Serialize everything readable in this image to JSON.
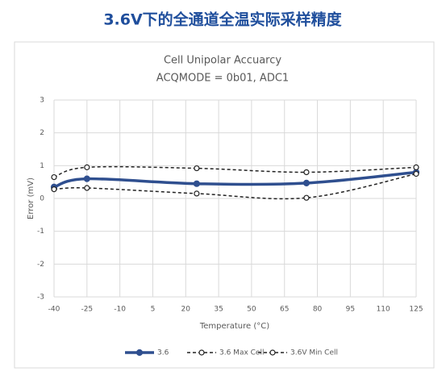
{
  "header": {
    "title": "3.6V下的全通道全温实际采样精度"
  },
  "chart_data": {
    "type": "line",
    "title": "Cell Unipolar Accuarcy",
    "subtitle": "ACQMODE = 0b01, ADC1",
    "x_label": "Temperature (°C)",
    "y_label": "Error (mV)",
    "x": [
      -40,
      -25,
      25,
      75,
      125
    ],
    "series": [
      {
        "name": "3.6",
        "color": "#2f4f8f",
        "values": [
          0.35,
          0.6,
          0.45,
          0.47,
          0.8
        ]
      },
      {
        "name": "3.6 Max Cell",
        "color": "#222222",
        "values": [
          0.65,
          0.95,
          0.92,
          0.8,
          0.95
        ]
      },
      {
        "name": "3.6V Min Cell",
        "color": "#222222",
        "values": [
          0.28,
          0.32,
          0.15,
          0.02,
          0.75
        ]
      }
    ],
    "xlim": [
      -40,
      125
    ],
    "xticks": [
      -40,
      -25,
      -10,
      5,
      20,
      35,
      50,
      65,
      80,
      95,
      110,
      125
    ],
    "ylim": [
      -3,
      3
    ],
    "yticks": [
      -3,
      -2,
      -1,
      0,
      1,
      2,
      3
    ],
    "grid": true,
    "legend": "bottom"
  }
}
